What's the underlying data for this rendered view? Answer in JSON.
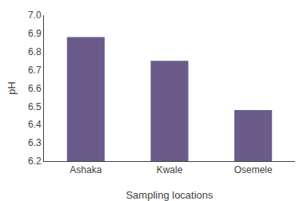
{
  "chart_data": {
    "type": "bar",
    "categories": [
      "Ashaka",
      "Kwale",
      "Osemele"
    ],
    "values": [
      6.88,
      6.75,
      6.48
    ],
    "color": "#6b5b8b",
    "xlabel": "Sampling locations",
    "ylabel": "pH",
    "ylim": [
      6.2,
      7.0
    ],
    "yticks": [
      6.2,
      6.3,
      6.4,
      6.5,
      6.6,
      6.7,
      6.8,
      6.9,
      {
        "value": 7.0,
        "label": "7.0"
      }
    ],
    "grid": false
  }
}
